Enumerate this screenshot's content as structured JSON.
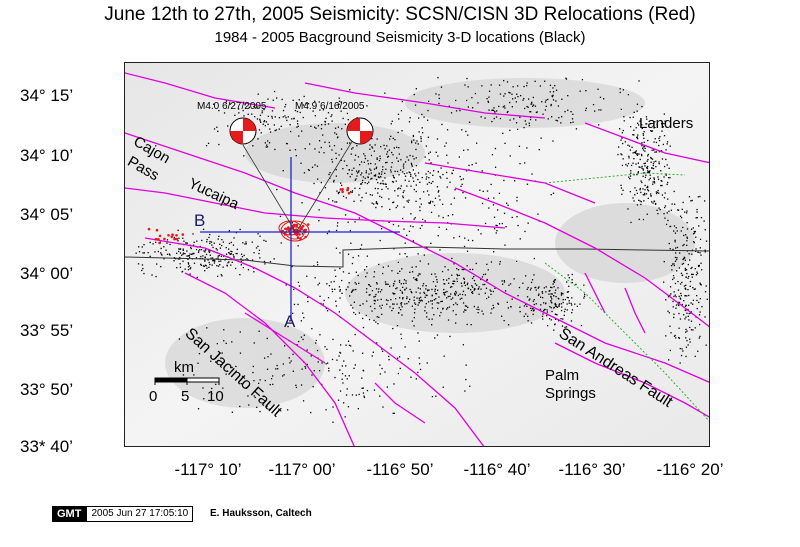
{
  "title": "June 12th to 27th, 2005 Seismicity: SCSN/CISN 3D Relocations (Red)",
  "subtitle": "1984 - 2005 Bacground Seismicity  3-D locations (Black)",
  "lat_labels": [
    "34° 15’",
    "34° 10’",
    "34° 05’",
    "34° 00’",
    "33° 55’",
    "33° 50’",
    "33* 40’"
  ],
  "lon_labels": [
    "-117° 10’",
    "-117° 00’",
    "-116° 50’",
    "-116° 40’",
    "-116° 30’",
    "-116° 20’"
  ],
  "events": [
    {
      "label": "M4.0 6/27/2005",
      "mechanism_color": "#e41a1c"
    },
    {
      "label": "M4.9 6/16/2005",
      "mechanism_color": "#e41a1c"
    }
  ],
  "places": {
    "landers": "Landers",
    "cajon_pass": [
      "Cajon",
      "Pass"
    ],
    "yucaipa": "Yucaipa",
    "palm_springs": [
      "Palm",
      "Springs"
    ],
    "san_jacinto_fault": "San Jacinto Fault",
    "san_andreas_fault": "San Andreas Fault"
  },
  "cross_section": {
    "start": "A",
    "end": "B"
  },
  "scale_bar": {
    "unit": "km",
    "ticks": [
      "0",
      "5",
      "10"
    ]
  },
  "colors": {
    "faults": "#e000e0",
    "background_seismicity": "#000000",
    "relocations": "#e41a1c",
    "cross_section": "#2222cc",
    "boundary": "#333333",
    "green_fault": "#22aa22"
  },
  "footer": {
    "logo": "GMT",
    "timestamp": "2005 Jun 27 17:05:10",
    "author": "E. Hauksson, Caltech"
  }
}
